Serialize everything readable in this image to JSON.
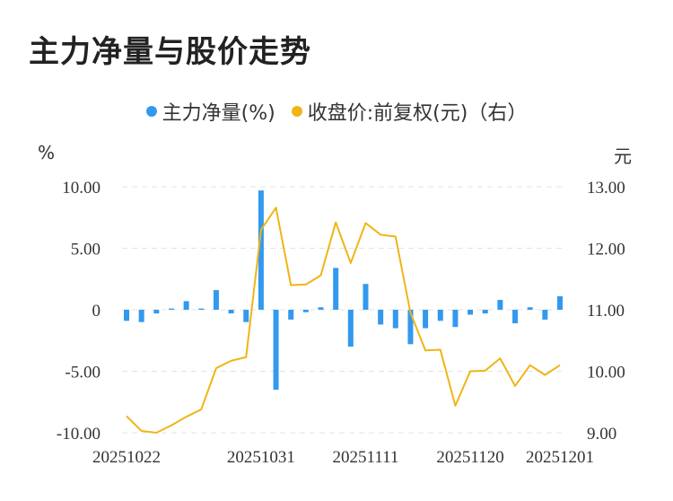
{
  "chart_data": {
    "type": "bar+line",
    "title": "主力净量与股价走势",
    "series": [
      {
        "name": "主力净量(%)",
        "type": "bar",
        "axis": "left",
        "color": "#3399EE",
        "values": [
          -0.9,
          -1.0,
          -0.3,
          0.1,
          0.7,
          0.1,
          1.6,
          -0.3,
          -1.0,
          9.7,
          -6.5,
          -0.8,
          -0.2,
          0.2,
          3.4,
          -3.0,
          2.1,
          -1.2,
          -1.5,
          -2.8,
          -1.5,
          -0.9,
          -1.4,
          -0.4,
          -0.3,
          0.8,
          -1.1,
          0.2,
          -0.8,
          1.1
        ]
      },
      {
        "name": "收盘价:前复权(元)（右）",
        "type": "line",
        "axis": "right",
        "color": "#F0B414",
        "values": [
          9.27,
          9.03,
          9.0,
          9.12,
          9.26,
          9.38,
          10.05,
          10.17,
          10.23,
          12.3,
          12.66,
          11.4,
          11.41,
          11.56,
          12.42,
          11.76,
          12.41,
          12.22,
          12.19,
          10.95,
          10.34,
          10.35,
          9.44,
          10.0,
          10.01,
          10.21,
          9.76,
          10.1,
          9.94,
          10.1
        ]
      }
    ],
    "x_labels": [
      "20251022",
      "20251031",
      "20251111",
      "20251120",
      "20251201"
    ],
    "x_label_index": [
      0,
      9,
      16,
      23,
      29
    ],
    "left_axis": {
      "unit": "%",
      "ticks": [
        "10.00",
        "5.00",
        "0",
        "-5.00",
        "-10.00"
      ],
      "ylim": [
        -10,
        10
      ]
    },
    "right_axis": {
      "unit": "元",
      "ticks": [
        "13.00",
        "12.00",
        "11.00",
        "10.00",
        "9.00"
      ],
      "ylim": [
        9,
        13
      ]
    },
    "grid": true,
    "legend_position": "top-center"
  }
}
